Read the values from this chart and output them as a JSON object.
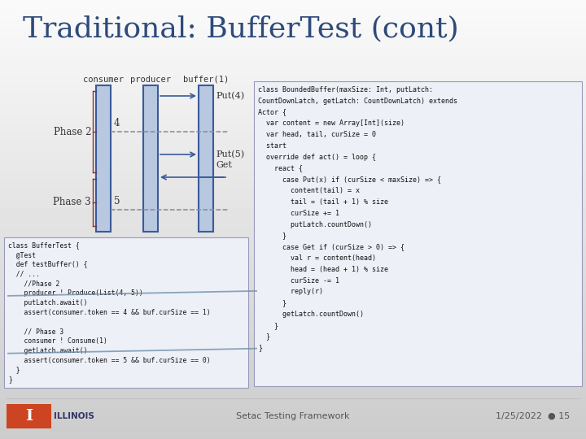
{
  "title": "Traditional: BufferTest (cont)",
  "title_color": "#2E4A7A",
  "title_fontsize": 26,
  "consumer_label": "consumer",
  "producer_label": "producer",
  "buffer_label": "buffer(1)",
  "phase2_label": "Phase 2",
  "phase3_label": "Phase 3",
  "put4_label": "Put(4)",
  "put5_label": "Put(5)",
  "get_label": "Get",
  "num4_label": "4",
  "num5_label": "5",
  "code_left": [
    "class BufferTest {",
    "  @Test",
    "  def testBuffer() {",
    "  // ...",
    "    //Phase 2",
    "    producer ! Produce(List(4, 5))",
    "    putLatch.await()",
    "    assert(consumer.token == 4 && buf.curSize == 1)",
    "",
    "    // Phase 3",
    "    consumer ! Consume(1)",
    "    getLatch.await()",
    "    assert(consumer.token == 5 && buf.curSize == 0)",
    "  }",
    "}"
  ],
  "code_right": [
    "class BoundedBuffer(maxSize: Int, putLatch:",
    "CountDownLatch, getLatch: CountDownLatch) extends",
    "Actor {",
    "  var content = new Array[Int](size)",
    "  var head, tail, curSize = 0",
    "  start",
    "  override def act() = loop {",
    "    react {",
    "      case Put(x) if (curSize < maxSize) => {",
    "        content(tail) = x",
    "        tail = (tail + 1) % size",
    "        curSize += 1",
    "        putLatch.countDown()",
    "      }",
    "      case Get if (curSize > 0) => {",
    "        val r = content(head)",
    "        head = (head + 1) % size",
    "        curSize -= 1",
    "        reply(r)",
    "      }",
    "      getLatch.countDown()",
    "    }",
    "  }",
    "}"
  ],
  "box_fill": "#B8C8E0",
  "box_edge": "#3A5A9A",
  "dashed_color": "#888899",
  "arrow_color": "#3A5A9A",
  "brace_color": "#883333",
  "code_bg": "#EEF0F8",
  "code_border": "#9999BB",
  "footer_left": "Setac Testing Framework",
  "footer_right": "1/25/2022",
  "footer_dot": "●",
  "footer_num": "15",
  "footer_color": "#555555",
  "diag_line_color": "#7090AA"
}
